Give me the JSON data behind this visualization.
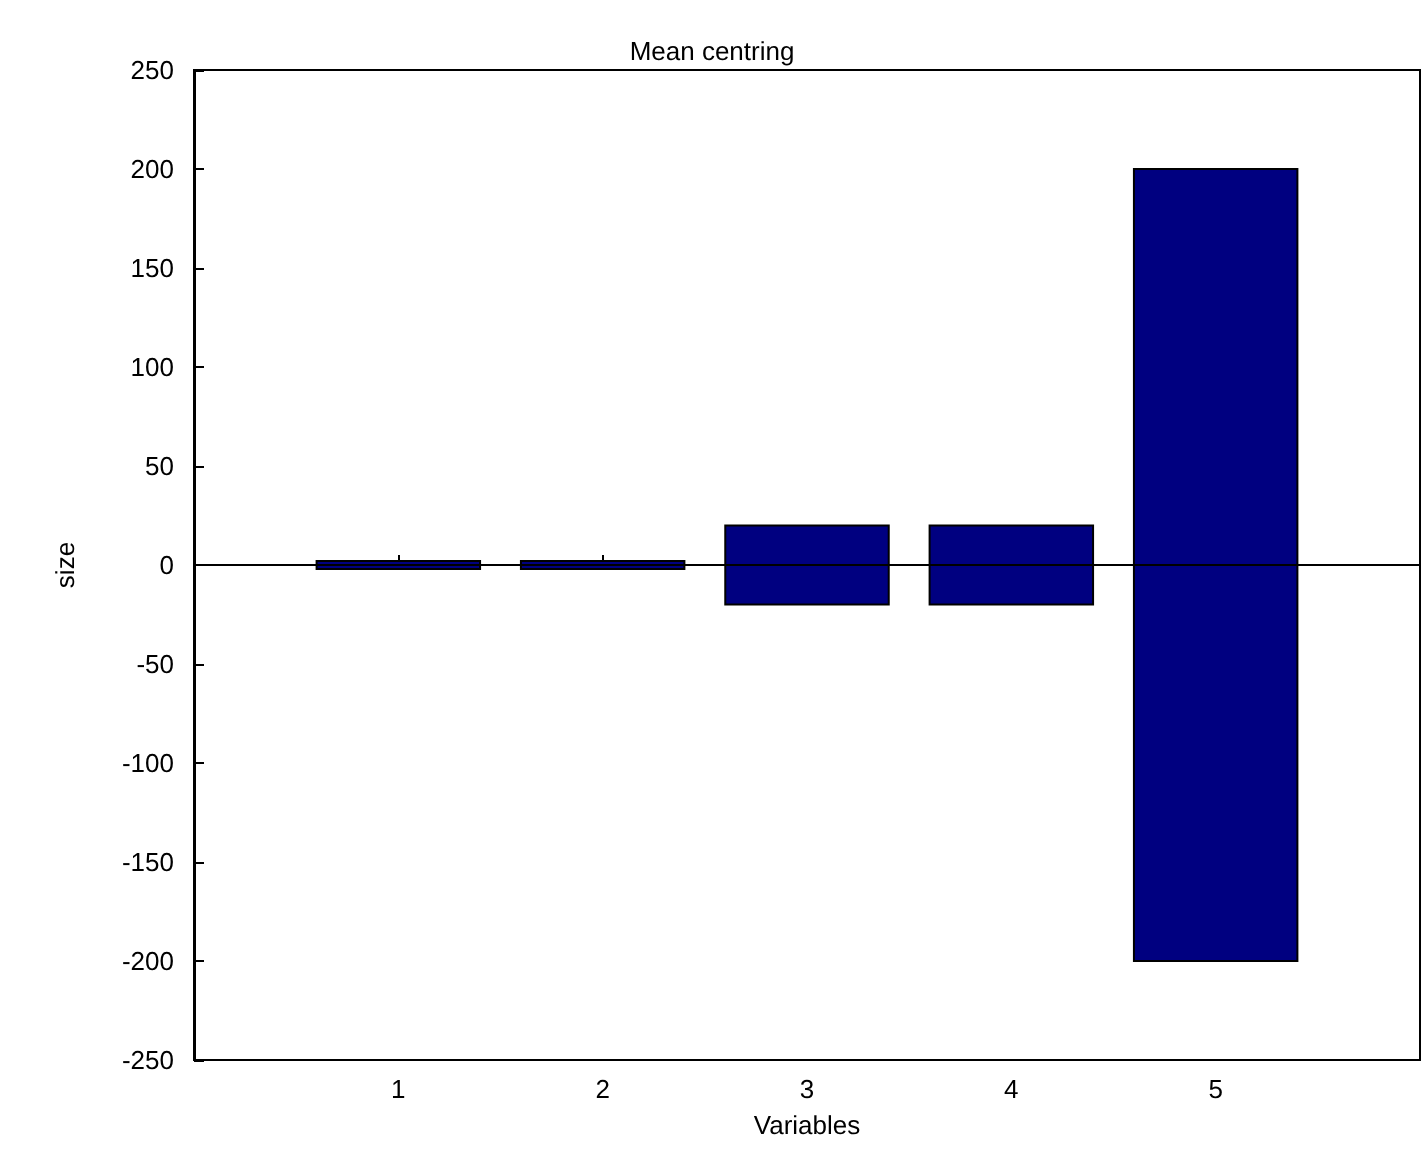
{
  "chart_data": {
    "type": "bar",
    "title": "Mean centring",
    "xlabel": "Variables",
    "ylabel": "size",
    "x": [
      1,
      2,
      3,
      4,
      5
    ],
    "base": [
      -2,
      -2,
      -20,
      -20,
      -200
    ],
    "values": [
      4,
      4,
      40,
      40,
      400
    ],
    "color": "#000080",
    "xlim": [
      0,
      6
    ],
    "xticks": [
      1,
      2,
      3,
      4,
      5
    ],
    "ylim": [
      -250,
      250
    ],
    "yticks": [
      -250,
      -200,
      -150,
      -100,
      -50,
      0,
      50,
      100,
      150,
      200,
      250
    ],
    "ref_lines": [
      {
        "axis": "y",
        "value": 0,
        "color": "#000000"
      }
    ],
    "grid": false
  }
}
